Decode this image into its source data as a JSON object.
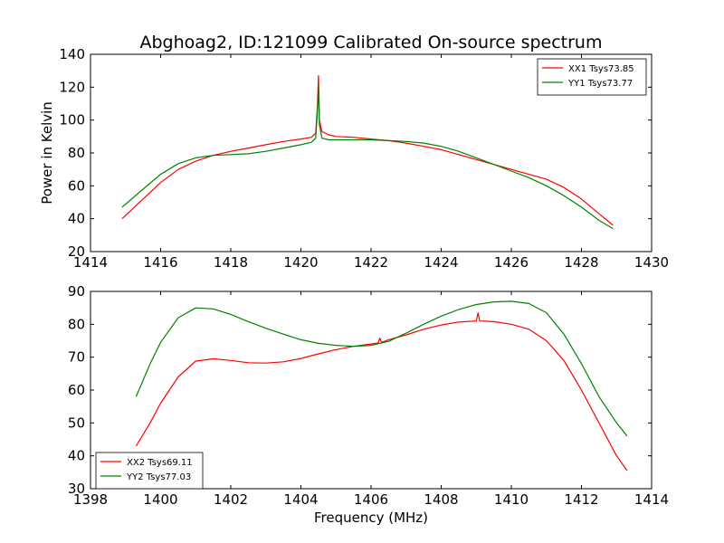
{
  "figure": {
    "title": "Abghoag2, ID:121099 Calibrated On-source spectrum",
    "xlabel": "Frequency (MHz)",
    "ylabel": "Power in Kelvin"
  },
  "chart_data": [
    {
      "type": "line",
      "title": "Abghoag2, ID:121099 Calibrated On-source spectrum",
      "xlabel": "",
      "ylabel": "Power in Kelvin",
      "xlim": [
        1414,
        1430
      ],
      "ylim": [
        20,
        140
      ],
      "xticks": [
        "1414",
        "1416",
        "1418",
        "1420",
        "1422",
        "1424",
        "1426",
        "1428",
        "1430"
      ],
      "yticks": [
        "20",
        "40",
        "60",
        "80",
        "100",
        "120",
        "140"
      ],
      "grid": false,
      "legend_position": "top-right",
      "series": [
        {
          "name": "XX1 Tsys73.85",
          "color": "#ff0000",
          "x": [
            1414.9,
            1415.5,
            1416.0,
            1416.5,
            1417.0,
            1417.5,
            1418.0,
            1418.5,
            1419.0,
            1419.5,
            1420.0,
            1420.3,
            1420.42,
            1420.47,
            1420.5,
            1420.53,
            1420.6,
            1420.8,
            1421.0,
            1421.5,
            1422.0,
            1422.5,
            1423.0,
            1423.5,
            1424.0,
            1424.5,
            1425.0,
            1425.5,
            1426.0,
            1426.5,
            1427.0,
            1427.5,
            1428.0,
            1428.5,
            1428.9
          ],
          "y": [
            40,
            52,
            62,
            70,
            75,
            78.5,
            81,
            83,
            85,
            87,
            88.5,
            89.5,
            92,
            108,
            127,
            100,
            93,
            91,
            90,
            89.5,
            88.5,
            87.5,
            86,
            84,
            82,
            79,
            76,
            73,
            70,
            67,
            64,
            59,
            52,
            43,
            36
          ]
        },
        {
          "name": "YY1 Tsys73.77",
          "color": "#008000",
          "x": [
            1414.9,
            1415.5,
            1416.0,
            1416.5,
            1417.0,
            1417.5,
            1418.0,
            1418.5,
            1419.0,
            1419.5,
            1420.0,
            1420.3,
            1420.42,
            1420.47,
            1420.5,
            1420.53,
            1420.6,
            1420.8,
            1421.0,
            1421.5,
            1422.0,
            1422.5,
            1423.0,
            1423.5,
            1424.0,
            1424.5,
            1425.0,
            1425.5,
            1426.0,
            1426.5,
            1427.0,
            1427.5,
            1428.0,
            1428.5,
            1428.9
          ],
          "y": [
            47,
            58,
            67,
            73.5,
            77,
            78.5,
            79,
            79.5,
            81,
            83,
            85,
            86.5,
            89,
            105,
            121,
            97,
            89,
            88,
            88,
            88,
            88,
            87.5,
            87,
            86,
            84,
            81,
            77,
            73,
            69,
            65,
            60,
            54,
            47,
            39,
            34
          ]
        }
      ]
    },
    {
      "type": "line",
      "title": "",
      "xlabel": "Frequency (MHz)",
      "ylabel": "",
      "xlim": [
        1398,
        1414
      ],
      "ylim": [
        30,
        90
      ],
      "xticks": [
        "1398",
        "1400",
        "1402",
        "1404",
        "1406",
        "1408",
        "1410",
        "1412",
        "1414"
      ],
      "yticks": [
        "30",
        "40",
        "50",
        "60",
        "70",
        "80",
        "90"
      ],
      "grid": false,
      "legend_position": "bottom-left",
      "series": [
        {
          "name": "XX2 Tsys69.11",
          "color": "#ff0000",
          "x": [
            1399.3,
            1399.7,
            1400.0,
            1400.5,
            1401.0,
            1401.5,
            1402.0,
            1402.5,
            1403.0,
            1403.5,
            1404.0,
            1404.5,
            1405.0,
            1405.5,
            1406.0,
            1406.2,
            1406.25,
            1406.3,
            1406.5,
            1407.0,
            1407.5,
            1408.0,
            1408.5,
            1409.0,
            1409.05,
            1409.1,
            1409.5,
            1410.0,
            1410.5,
            1411.0,
            1411.5,
            1412.0,
            1412.5,
            1413.0,
            1413.3
          ],
          "y": [
            43,
            50,
            56,
            64,
            68.8,
            69.5,
            69,
            68.3,
            68.2,
            68.6,
            69.6,
            71,
            72.3,
            73.3,
            74,
            74.3,
            75.8,
            74.5,
            75.3,
            76.8,
            78.5,
            79.8,
            80.7,
            81,
            83.5,
            81,
            80.8,
            80,
            78.5,
            75,
            69,
            60,
            50,
            40,
            35.5
          ]
        },
        {
          "name": "YY2 Tsys77.03",
          "color": "#008000",
          "x": [
            1399.3,
            1399.7,
            1400.0,
            1400.5,
            1401.0,
            1401.5,
            1402.0,
            1402.5,
            1403.0,
            1403.5,
            1404.0,
            1404.5,
            1405.0,
            1405.5,
            1406.0,
            1406.5,
            1407.0,
            1407.5,
            1408.0,
            1408.5,
            1409.0,
            1409.5,
            1410.0,
            1410.5,
            1411.0,
            1411.5,
            1412.0,
            1412.5,
            1413.0,
            1413.3
          ],
          "y": [
            58,
            68,
            74.5,
            82,
            85,
            84.7,
            83,
            80.8,
            78.8,
            77,
            75.3,
            74.2,
            73.6,
            73.3,
            73.6,
            74.8,
            77.3,
            80,
            82.5,
            84.5,
            86,
            86.8,
            87,
            86.3,
            83.5,
            77,
            68,
            58,
            50,
            46
          ]
        }
      ]
    }
  ]
}
